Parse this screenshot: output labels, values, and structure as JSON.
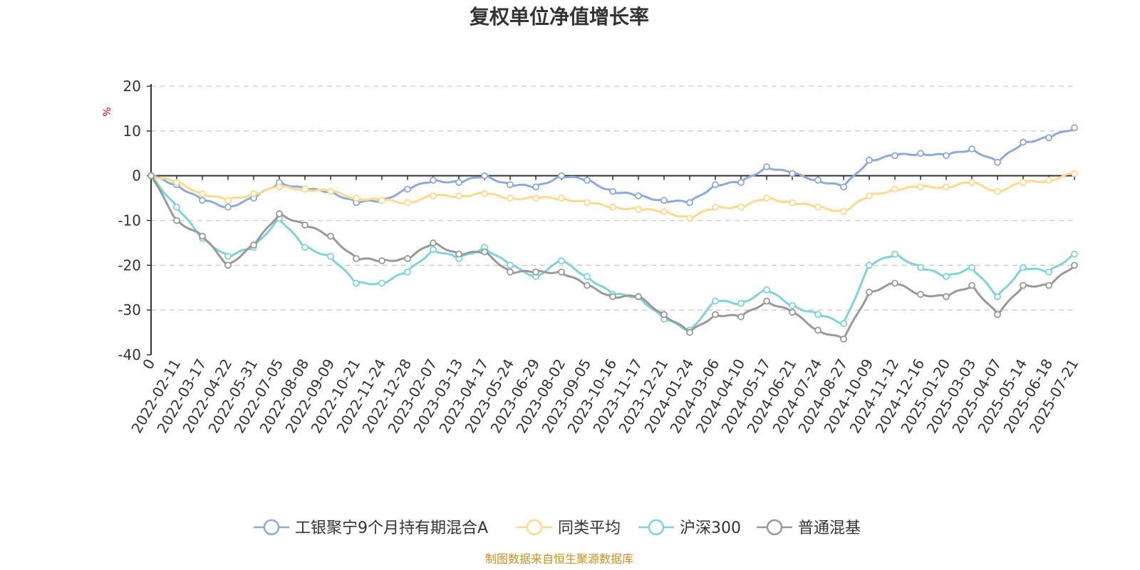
{
  "chart_data": {
    "type": "line",
    "title": "复权单位净值增长率",
    "ylabel": "%",
    "ylim": [
      -40,
      20
    ],
    "yticks": [
      "20",
      "10",
      "0",
      "-10",
      "-20",
      "-30",
      "-40"
    ],
    "grid": true,
    "legend_position": "bottom",
    "source": "制图数据来自恒生聚源数据库",
    "x_first_label": "0",
    "x": [
      "2022-02-11",
      "2022-03-17",
      "2022-04-22",
      "2022-05-31",
      "2022-07-05",
      "2022-08-08",
      "2022-09-09",
      "2022-10-21",
      "2022-11-24",
      "2022-12-28",
      "2023-02-07",
      "2023-03-13",
      "2023-04-17",
      "2023-05-24",
      "2023-06-29",
      "2023-08-02",
      "2023-09-05",
      "2023-10-16",
      "2023-11-17",
      "2023-12-21",
      "2024-01-24",
      "2024-03-06",
      "2024-04-10",
      "2024-05-17",
      "2024-06-21",
      "2024-07-24",
      "2024-08-27",
      "2024-10-09",
      "2024-11-12",
      "2024-12-16",
      "2025-01-20",
      "2025-03-03",
      "2025-04-07",
      "2025-05-14",
      "2025-06-18",
      "2025-07-21"
    ],
    "series": [
      {
        "name": "工银聚宁9个月持有期混合A",
        "color": "#8ea9db",
        "start": 0,
        "values": [
          -2,
          -5.5,
          -7,
          -5,
          -1.5,
          -3,
          -3.5,
          -6,
          -5.5,
          -3,
          -1,
          -1.5,
          0,
          -2,
          -2.5,
          0,
          -1,
          -3.5,
          -4.5,
          -5.5,
          -6,
          -2,
          -1.5,
          2,
          0.5,
          -1,
          -2.5,
          3.5,
          4.5,
          5,
          4.5,
          6,
          3,
          7.5,
          8.5,
          10.7
        ]
      },
      {
        "name": "同类平均",
        "color": "#ffd98e",
        "start": 0,
        "values": [
          -1.5,
          -4,
          -5.5,
          -4,
          -2.5,
          -3,
          -3.5,
          -5,
          -5.5,
          -6,
          -4.5,
          -4.5,
          -4,
          -5,
          -5,
          -5,
          -6,
          -7,
          -7.5,
          -8,
          -9.5,
          -7,
          -7,
          -5,
          -6,
          -7,
          -8,
          -4.5,
          -3,
          -2.5,
          -2.5,
          -1.5,
          -3.5,
          -1.5,
          -1,
          0.5
        ]
      },
      {
        "name": "沪深300",
        "color": "#7fd3d9",
        "start": 0,
        "values": [
          -7,
          -14,
          -18,
          -16,
          -9.5,
          -16,
          -18,
          -24,
          -24,
          -21.5,
          -16.5,
          -18.5,
          -16,
          -20,
          -22.5,
          -19,
          -22.5,
          -26.5,
          -27,
          -32,
          -34.5,
          -28,
          -28.5,
          -25.5,
          -29,
          -31,
          -33,
          -20,
          -17.5,
          -20.5,
          -22.5,
          -20.5,
          -27,
          -20.5,
          -21.5,
          -17.5
        ]
      },
      {
        "name": "普通混基",
        "color": "#999999",
        "start": 0,
        "values": [
          -10,
          -13.5,
          -20,
          -15.5,
          -8.5,
          -11,
          -13.5,
          -18.5,
          -19,
          -18.5,
          -15,
          -17.5,
          -17,
          -21.5,
          -21.5,
          -21.5,
          -24.5,
          -27,
          -27,
          -31,
          -35,
          -31,
          -31.5,
          -28,
          -30.5,
          -34.5,
          -36.5,
          -26,
          -24,
          -26.5,
          -27,
          -24.5,
          -31,
          -24.5,
          -24.5,
          -20
        ]
      }
    ]
  }
}
